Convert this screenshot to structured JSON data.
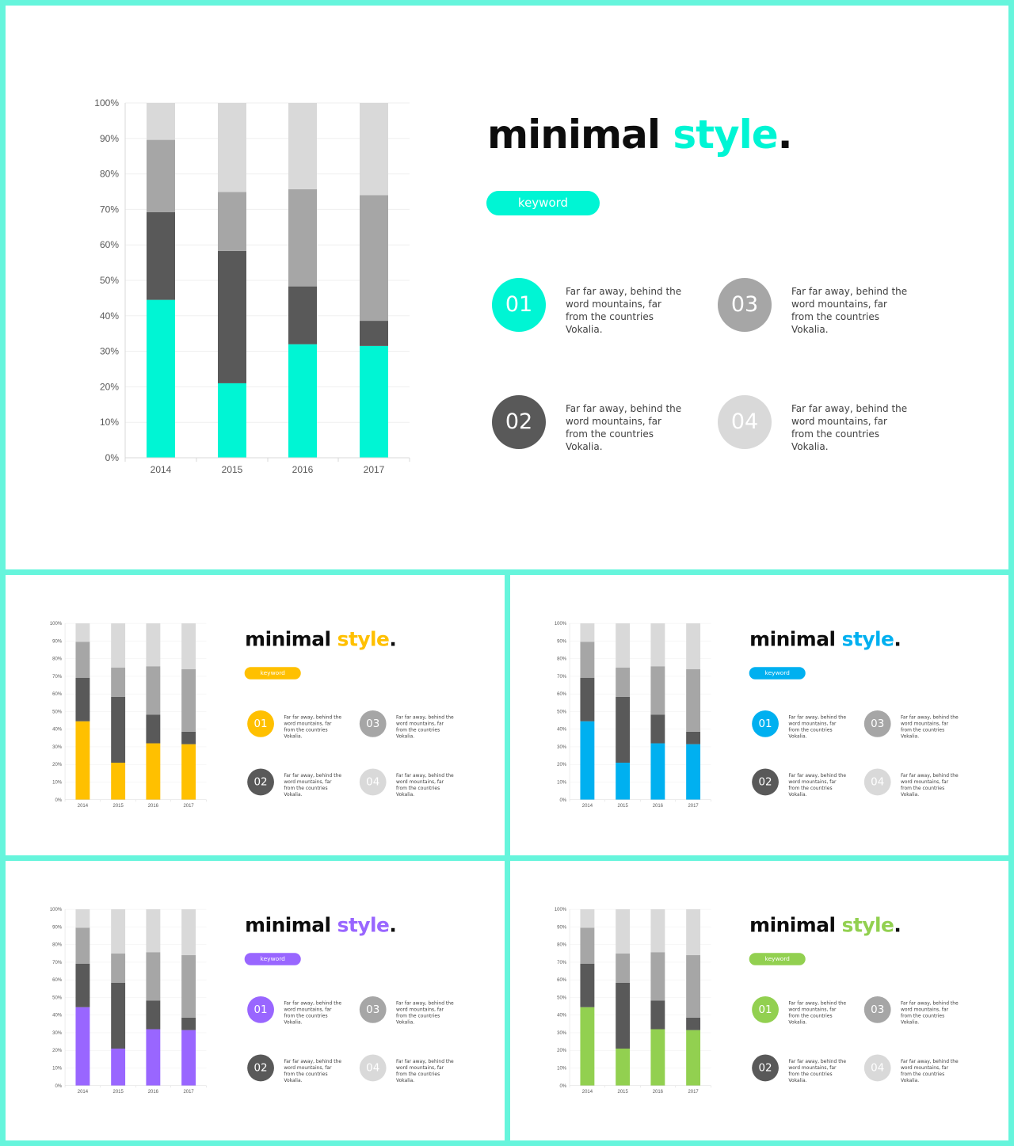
{
  "slides": [
    {
      "id": "main",
      "accent": "#00f5d4",
      "title_prefix": "minimal ",
      "title_accent": "style",
      "title_suffix": ".",
      "keyword": "keyword",
      "items": [
        {
          "number": "01",
          "text": "Far far away, behind the word mountains, far from the countries Vokalia.",
          "color": "#00f5d4"
        },
        {
          "number": "02",
          "text": "Far far away, behind the word mountains, far from the countries Vokalia.",
          "color": "#595959"
        },
        {
          "number": "03",
          "text": "Far far away, behind the word mountains, far from the countries Vokalia.",
          "color": "#a6a6a6"
        },
        {
          "number": "04",
          "text": "Far far away, behind the word mountains, far from the countries Vokalia.",
          "color": "#d9d9d9"
        }
      ]
    },
    {
      "id": "yellow",
      "accent": "#ffc000",
      "title_prefix": "minimal ",
      "title_accent": "style",
      "title_suffix": ".",
      "keyword": "keyword",
      "items": [
        {
          "number": "01",
          "text": "Far far away, behind the word mountains, far from the countries Vokalia.",
          "color": "#ffc000"
        },
        {
          "number": "02",
          "text": "Far far away, behind the word mountains, far from the countries Vokalia.",
          "color": "#595959"
        },
        {
          "number": "03",
          "text": "Far far away, behind the word mountains, far from the countries Vokalia.",
          "color": "#a6a6a6"
        },
        {
          "number": "04",
          "text": "Far far away, behind the word mountains, far from the countries Vokalia.",
          "color": "#d9d9d9"
        }
      ]
    },
    {
      "id": "blue",
      "accent": "#00b0f0",
      "title_prefix": "minimal ",
      "title_accent": "style",
      "title_suffix": ".",
      "keyword": "keyword",
      "items": [
        {
          "number": "01",
          "text": "Far far away, behind the word mountains, far from the countries Vokalia.",
          "color": "#00b0f0"
        },
        {
          "number": "02",
          "text": "Far far away, behind the word mountains, far from the countries Vokalia.",
          "color": "#595959"
        },
        {
          "number": "03",
          "text": "Far far away, behind the word mountains, far from the countries Vokalia.",
          "color": "#a6a6a6"
        },
        {
          "number": "04",
          "text": "Far far away, behind the word mountains, far from the countries Vokalia.",
          "color": "#d9d9d9"
        }
      ]
    },
    {
      "id": "purple",
      "accent": "#9966ff",
      "title_prefix": "minimal ",
      "title_accent": "style",
      "title_suffix": ".",
      "keyword": "keyword",
      "items": [
        {
          "number": "01",
          "text": "Far far away, behind the word mountains, far from the countries Vokalia.",
          "color": "#9966ff"
        },
        {
          "number": "02",
          "text": "Far far away, behind the word mountains, far from the countries Vokalia.",
          "color": "#595959"
        },
        {
          "number": "03",
          "text": "Far far away, behind the word mountains, far from the countries Vokalia.",
          "color": "#a6a6a6"
        },
        {
          "number": "04",
          "text": "Far far away, behind the word mountains, far from the countries Vokalia.",
          "color": "#d9d9d9"
        }
      ]
    },
    {
      "id": "green",
      "accent": "#92d050",
      "title_prefix": "minimal ",
      "title_accent": "style",
      "title_suffix": ".",
      "keyword": "keyword",
      "items": [
        {
          "number": "01",
          "text": "Far far away, behind the word mountains, far from the countries Vokalia.",
          "color": "#92d050"
        },
        {
          "number": "02",
          "text": "Far far away, behind the word mountains, far from the countries Vokalia.",
          "color": "#595959"
        },
        {
          "number": "03",
          "text": "Far far away, behind the word mountains, far from the countries Vokalia.",
          "color": "#a6a6a6"
        },
        {
          "number": "04",
          "text": "Far far away, behind the word mountains, far from the countries Vokalia.",
          "color": "#d9d9d9"
        }
      ]
    }
  ],
  "chart_data": {
    "type": "bar",
    "stacked": true,
    "percent": true,
    "categories": [
      "2014",
      "2015",
      "2016",
      "2017"
    ],
    "series": [
      {
        "values": [
          44.5,
          21,
          32,
          31.5
        ],
        "color": "accent"
      },
      {
        "values": [
          24.7,
          37.3,
          16.3,
          7.1
        ],
        "color": "#595959"
      },
      {
        "values": [
          20.4,
          16.6,
          27.4,
          35.4
        ],
        "color": "#a6a6a6"
      },
      {
        "values": [
          10.4,
          25.1,
          24.3,
          26.0
        ],
        "color": "#d9d9d9"
      }
    ],
    "yticks": [
      "0%",
      "10%",
      "20%",
      "30%",
      "40%",
      "50%",
      "60%",
      "70%",
      "80%",
      "90%",
      "100%"
    ],
    "ylim": [
      0,
      100
    ],
    "grid": true,
    "legend": "none"
  }
}
